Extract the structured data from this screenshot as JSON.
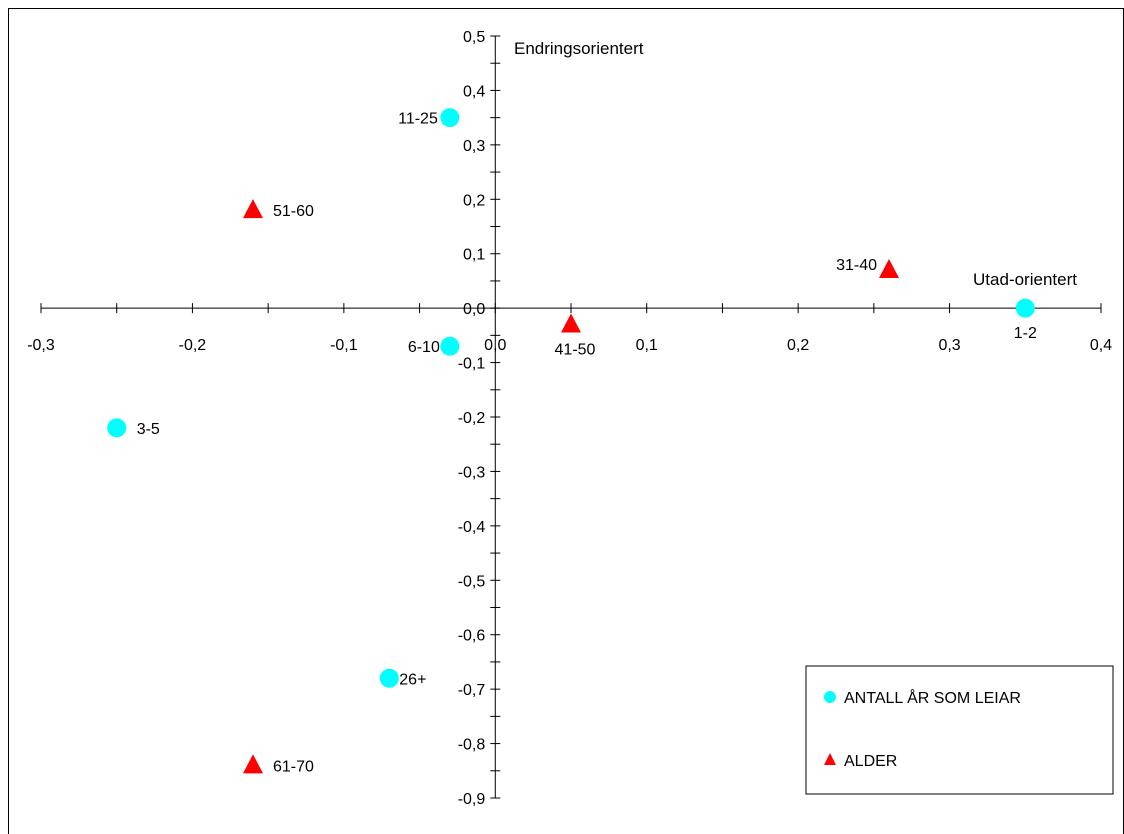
{
  "chart_data": {
    "type": "scatter",
    "x_axis_label": "Utad-orientert",
    "y_axis_label": "Endringsorientert",
    "xlim": [
      -0.3,
      0.4
    ],
    "ylim": [
      -0.9,
      0.5
    ],
    "x_ticks": [
      -0.3,
      -0.2,
      -0.1,
      0.0,
      0.1,
      0.2,
      0.3,
      0.4
    ],
    "y_ticks": [
      0.5,
      0.4,
      0.3,
      0.2,
      0.1,
      0.0,
      -0.1,
      -0.2,
      -0.3,
      -0.4,
      -0.5,
      -0.6,
      -0.7,
      -0.8,
      -0.9
    ],
    "x_tick_labels": [
      "-0,3",
      "-0,2",
      "-0,1",
      "0,0",
      "0,1",
      "0,2",
      "0,3",
      "0,4"
    ],
    "y_tick_labels": [
      "0,5",
      "0,4",
      "0,3",
      "0,2",
      "0,1",
      "0,0",
      "-0,1",
      "-0,2",
      "-0,3",
      "-0,4",
      "-0,5",
      "-0,6",
      "-0,7",
      "-0,8",
      "-0,9"
    ],
    "legend_position": "bottom-right",
    "series": [
      {
        "name": "ANTALL ÅR SOM LEIAR",
        "marker": "circle",
        "color": "#00FFFF",
        "points": [
          {
            "label": "1-2",
            "x": 0.35,
            "y": 0.0
          },
          {
            "label": "3-5",
            "x": -0.25,
            "y": -0.22
          },
          {
            "label": "6-10",
            "x": -0.03,
            "y": -0.07
          },
          {
            "label": "11-25",
            "x": -0.03,
            "y": 0.35
          },
          {
            "label": "26+",
            "x": -0.07,
            "y": -0.68
          }
        ]
      },
      {
        "name": "ALDER",
        "marker": "triangle",
        "color": "#FF0000",
        "points": [
          {
            "label": "31-40",
            "x": 0.26,
            "y": 0.07
          },
          {
            "label": "41-50",
            "x": 0.05,
            "y": -0.03
          },
          {
            "label": "51-60",
            "x": -0.16,
            "y": 0.18
          },
          {
            "label": "61-70",
            "x": -0.16,
            "y": -0.84
          }
        ]
      }
    ]
  }
}
